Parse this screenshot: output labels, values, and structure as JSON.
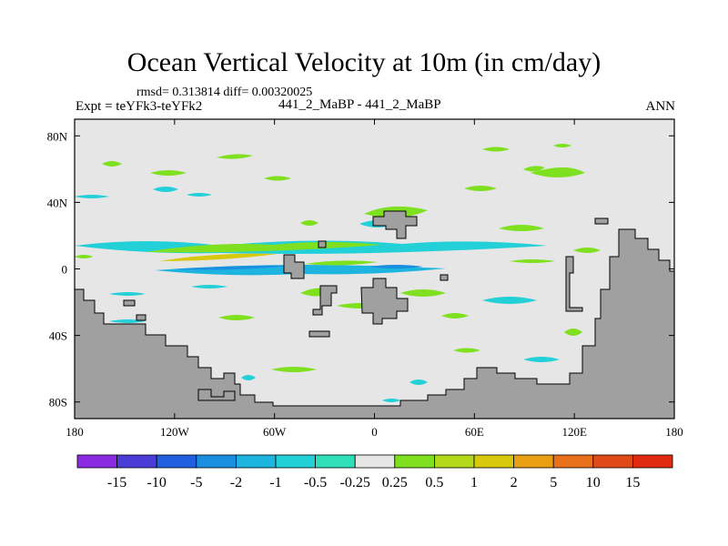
{
  "chart_data": {
    "type": "heatmap",
    "title": "Ocean Vertical Velocity at 10m (in cm/day)",
    "stats": "rmsd= 0.313814  diff= 0.00320025",
    "left_label": "Expt = teYFk3-teYFk2",
    "center_label": "441_2_MaBP - 441_2_MaBP",
    "right_label": "ANN",
    "x_range": [
      -180,
      180
    ],
    "y_range": [
      -90,
      90
    ],
    "x_ticks": [
      {
        "value": -180,
        "label": "180"
      },
      {
        "value": -120,
        "label": "120W"
      },
      {
        "value": -60,
        "label": "60W"
      },
      {
        "value": 0,
        "label": "0"
      },
      {
        "value": 60,
        "label": "60E"
      },
      {
        "value": 120,
        "label": "120E"
      },
      {
        "value": 180,
        "label": "180"
      }
    ],
    "y_ticks": [
      {
        "value": 80,
        "label": "80N"
      },
      {
        "value": 40,
        "label": "40N"
      },
      {
        "value": 0,
        "label": "0"
      },
      {
        "value": -40,
        "label": "40S"
      },
      {
        "value": -80,
        "label": "80S"
      }
    ],
    "colorbar": {
      "levels": [
        "-15",
        "-10",
        "-5",
        "-2",
        "-1",
        "-0.5",
        "-0.25",
        "0.25",
        "0.5",
        "1",
        "2",
        "5",
        "10",
        "15"
      ],
      "colors": [
        "#8a2be2",
        "#4b3cd8",
        "#1f5fe0",
        "#1a8fe0",
        "#1eb4e0",
        "#23d0d8",
        "#2fe0b8",
        "#e6e6e6",
        "#7ee01e",
        "#b4d81a",
        "#d8c80e",
        "#e8a012",
        "#e8701a",
        "#e04a16",
        "#e02a10"
      ]
    },
    "colors": {
      "background": "#e6e6e6",
      "land": "#a0a0a0",
      "green": "#7ee01e",
      "yellow": "#d8c80e",
      "cyan": "#23d0d8",
      "teal": "#2fe0b8",
      "light_blue": "#1eb4e0",
      "blue": "#1a8fe0"
    }
  }
}
